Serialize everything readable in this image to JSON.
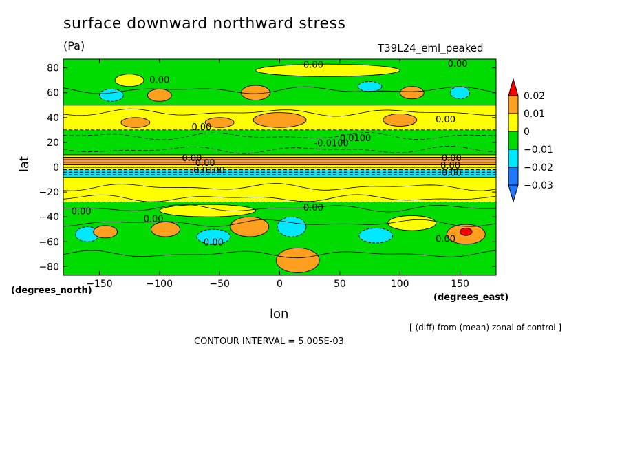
{
  "title": "surface downward northward stress",
  "units": "(Pa)",
  "experiment": "T39L24_eml_peaked",
  "diff_note": "[ (diff) from (mean) zonal of control ]",
  "contour_interval": "CONTOUR INTERVAL = 5.005E-03",
  "colors": {
    "c_lt_m003": "#1f78ff",
    "c_m003_m002": "#1f78ff",
    "c_m002_m001": "#00e8ff",
    "c_m001_0": "#00dc00",
    "c_0_001": "#ffff00",
    "c_001_002": "#ff9f20",
    "c_gt_002": "#ff0000"
  },
  "chart_data": {
    "type": "heatmap",
    "title": "surface downward northward stress",
    "subtitle": "T39L24_eml_peaked",
    "xlabel": "lon",
    "ylabel": "lat",
    "x_unit_label": "(degrees_east)",
    "y_unit_label": "(degrees_north)",
    "xlim": [
      -180,
      180
    ],
    "ylim": [
      -87,
      87
    ],
    "x_ticks": [
      -150,
      -100,
      -50,
      0,
      50,
      100,
      150
    ],
    "y_ticks": [
      -80,
      -60,
      -40,
      -20,
      0,
      20,
      40,
      60,
      80
    ],
    "x_tick_labels": [
      "−150",
      "−100",
      "−50",
      "0",
      "50",
      "100",
      "150"
    ],
    "y_tick_labels": [
      "−80",
      "−60",
      "−40",
      "−20",
      "0",
      "20",
      "40",
      "60",
      "80"
    ],
    "legend": {
      "position": "right",
      "levels": [
        0.02,
        0.01,
        0,
        -0.01,
        -0.02,
        -0.03
      ],
      "level_labels": [
        "0.02",
        "0.01",
        "0",
        "−0.01",
        "−0.02",
        "−0.03"
      ]
    },
    "zonal_bands": [
      {
        "lat_min": 50,
        "lat_max": 87,
        "value": -0.005
      },
      {
        "lat_min": 30,
        "lat_max": 50,
        "value": 0.005
      },
      {
        "lat_min": 10,
        "lat_max": 30,
        "value": -0.006
      },
      {
        "lat_min": 8,
        "lat_max": 10,
        "value": 0.008
      },
      {
        "lat_min": 2,
        "lat_max": 8,
        "value": 0.012
      },
      {
        "lat_min": -2,
        "lat_max": 2,
        "value": 0.004
      },
      {
        "lat_min": -8,
        "lat_max": -2,
        "value": -0.012
      },
      {
        "lat_min": -28,
        "lat_max": -8,
        "value": 0.004
      },
      {
        "lat_min": -87,
        "lat_max": -28,
        "value": -0.004
      }
    ],
    "anomalies": [
      {
        "lon": -140,
        "lat": 58,
        "r_lon": 10,
        "r_lat": 5,
        "value": -0.015
      },
      {
        "lon": -100,
        "lat": 58,
        "r_lon": 10,
        "r_lat": 5,
        "value": 0.012
      },
      {
        "lon": -125,
        "lat": 70,
        "r_lon": 12,
        "r_lat": 5,
        "value": 0.004
      },
      {
        "lon": -120,
        "lat": 36,
        "r_lon": 12,
        "r_lat": 4,
        "value": 0.012
      },
      {
        "lon": -50,
        "lat": 36,
        "r_lon": 12,
        "r_lat": 4,
        "value": 0.012
      },
      {
        "lon": 0,
        "lat": 38,
        "r_lon": 22,
        "r_lat": 6,
        "value": 0.012
      },
      {
        "lon": -20,
        "lat": 60,
        "r_lon": 12,
        "r_lat": 6,
        "value": 0.012
      },
      {
        "lon": 75,
        "lat": 65,
        "r_lon": 10,
        "r_lat": 4,
        "value": -0.015
      },
      {
        "lon": 110,
        "lat": 60,
        "r_lon": 10,
        "r_lat": 5,
        "value": 0.012
      },
      {
        "lon": 100,
        "lat": 38,
        "r_lon": 14,
        "r_lat": 5,
        "value": 0.012
      },
      {
        "lon": 150,
        "lat": 60,
        "r_lon": 8,
        "r_lat": 5,
        "value": -0.015
      },
      {
        "lon": 40,
        "lat": 78,
        "r_lon": 60,
        "r_lat": 5,
        "value": 0.004
      },
      {
        "lon": -160,
        "lat": -54,
        "r_lon": 10,
        "r_lat": 6,
        "value": -0.015
      },
      {
        "lon": -145,
        "lat": -52,
        "r_lon": 10,
        "r_lat": 5,
        "value": 0.012
      },
      {
        "lon": -95,
        "lat": -50,
        "r_lon": 12,
        "r_lat": 6,
        "value": 0.012
      },
      {
        "lon": -55,
        "lat": -56,
        "r_lon": 14,
        "r_lat": 6,
        "value": -0.015
      },
      {
        "lon": -25,
        "lat": -48,
        "r_lon": 16,
        "r_lat": 8,
        "value": 0.012
      },
      {
        "lon": 10,
        "lat": -48,
        "r_lon": 12,
        "r_lat": 8,
        "value": -0.015
      },
      {
        "lon": 15,
        "lat": -75,
        "r_lon": 18,
        "r_lat": 10,
        "value": 0.012
      },
      {
        "lon": 80,
        "lat": -55,
        "r_lon": 14,
        "r_lat": 6,
        "value": -0.015
      },
      {
        "lon": 155,
        "lat": -54,
        "r_lon": 16,
        "r_lat": 8,
        "value": 0.014
      },
      {
        "lon": 155,
        "lat": -52,
        "r_lon": 5,
        "r_lat": 3,
        "value": 0.025
      },
      {
        "lon": 110,
        "lat": -45,
        "r_lon": 20,
        "r_lat": 6,
        "value": 0.004
      },
      {
        "lon": -60,
        "lat": -35,
        "r_lon": 40,
        "r_lat": 5,
        "value": 0.004
      }
    ],
    "contour_labels": [
      {
        "lon": -100,
        "lat": 68,
        "text": "0.00"
      },
      {
        "lon": 28,
        "lat": 80,
        "text": "0.00"
      },
      {
        "lon": 148,
        "lat": 81,
        "text": "0.00"
      },
      {
        "lon": -65,
        "lat": 30,
        "text": "0.00"
      },
      {
        "lon": 138,
        "lat": 36,
        "text": "0.00"
      },
      {
        "lon": 43,
        "lat": 17,
        "text": "-0.0100"
      },
      {
        "lon": 63,
        "lat": 21,
        "text": "0.0100"
      },
      {
        "lon": -73,
        "lat": 5,
        "text": "0.00"
      },
      {
        "lon": -62,
        "lat": 1,
        "text": "0.00"
      },
      {
        "lon": -60,
        "lat": -5,
        "text": "-0.0100"
      },
      {
        "lon": 143,
        "lat": 5,
        "text": "0.00"
      },
      {
        "lon": 142,
        "lat": -1,
        "text": "0.00"
      },
      {
        "lon": 143,
        "lat": -7,
        "text": "0.00"
      },
      {
        "lon": 28,
        "lat": -35,
        "text": "0.00"
      },
      {
        "lon": -165,
        "lat": -38,
        "text": "0.00"
      },
      {
        "lon": -105,
        "lat": -44,
        "text": "0.00"
      },
      {
        "lon": -55,
        "lat": -63,
        "text": "0.00"
      },
      {
        "lon": 138,
        "lat": -60,
        "text": "0.00"
      }
    ]
  }
}
